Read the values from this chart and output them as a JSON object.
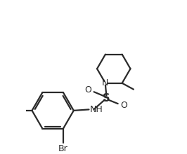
{
  "background_color": "#ffffff",
  "bond_color": "#2a2a2a",
  "line_width": 1.6,
  "font_size": 9.0,
  "figsize": [
    2.66,
    2.2
  ],
  "dpi": 100,
  "xlim": [
    -1.0,
    5.5
  ],
  "ylim": [
    -2.5,
    4.5
  ]
}
